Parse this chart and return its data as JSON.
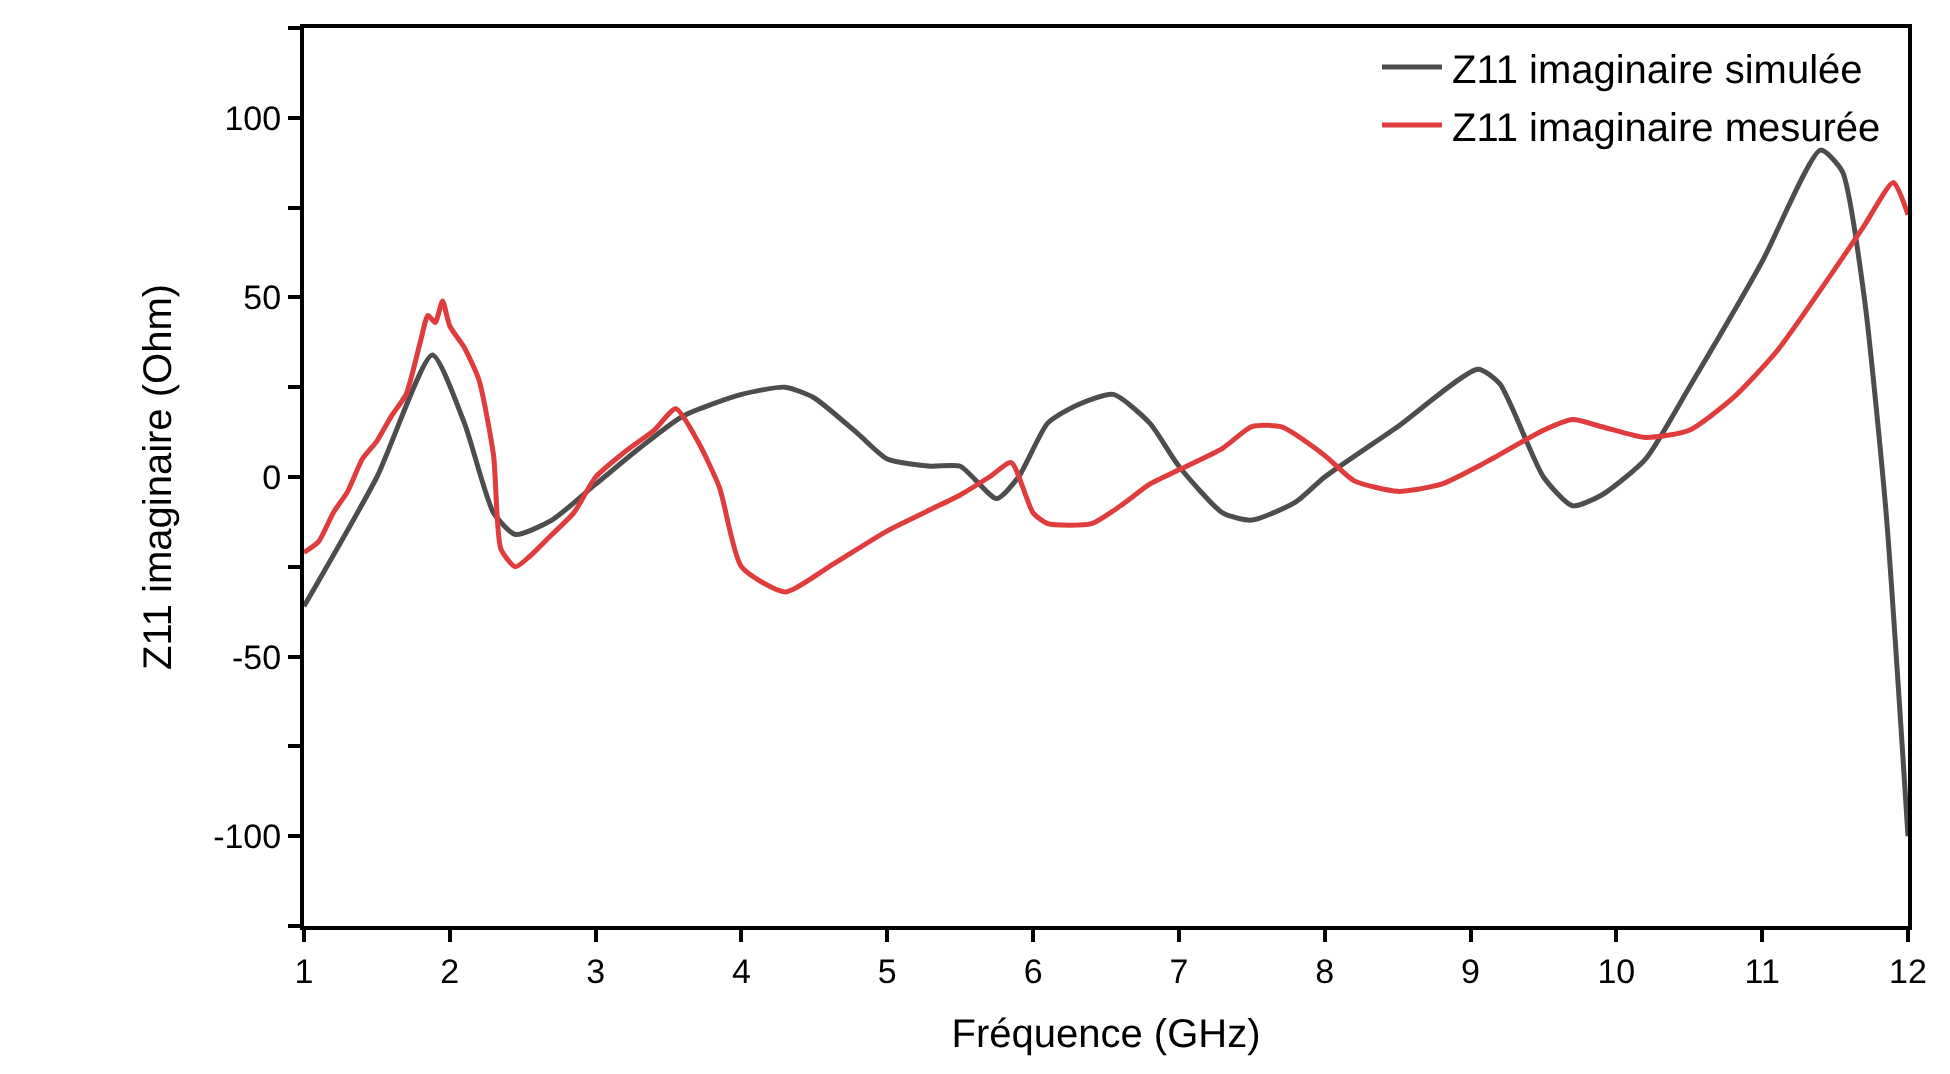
{
  "chart_data": {
    "type": "line",
    "xlabel": "Fréquence (GHz)",
    "ylabel": "Z11 imaginaire (Ohm)",
    "xlim": [
      1,
      12
    ],
    "xticks": [
      1,
      2,
      3,
      4,
      5,
      6,
      7,
      8,
      9,
      10,
      11,
      12
    ],
    "ylim": [
      -125,
      125
    ],
    "yticks": [
      {
        "value": -125,
        "label": null
      },
      -100,
      {
        "value": -75,
        "label": null
      },
      -50,
      {
        "value": -25,
        "label": null
      },
      0,
      {
        "value": 25,
        "label": null
      },
      50,
      {
        "value": 75,
        "label": null
      },
      100,
      {
        "value": 125,
        "label": null
      }
    ],
    "grid": false,
    "legend": "top right",
    "marker": "none",
    "line_style": "solid",
    "series": [
      {
        "name": "Z11 imaginaire simulée",
        "color": "#4d4d4d",
        "x": [
          1,
          1.5,
          1.88,
          2.1,
          2.3,
          2.45,
          2.7,
          3,
          3.3,
          3.6,
          4,
          4.3,
          4.5,
          4.8,
          5,
          5.3,
          5.5,
          5.75,
          5.9,
          6.1,
          6.3,
          6.55,
          6.8,
          7,
          7.3,
          7.5,
          7.8,
          8,
          8.5,
          9.05,
          9.2,
          9.5,
          9.7,
          9.9,
          10.2,
          10.5,
          11,
          11.4,
          11.55,
          11.7,
          11.85,
          12
        ],
        "values": [
          -36,
          0,
          34,
          15,
          -10,
          -16,
          -12,
          -2,
          8,
          17,
          23,
          25,
          22,
          12,
          5,
          3,
          3,
          -6,
          0,
          15,
          20,
          23,
          15,
          3,
          -10,
          -12,
          -7,
          0,
          14,
          30,
          26,
          0,
          -8,
          -5,
          5,
          25,
          60,
          91,
          85,
          50,
          -10,
          -100
        ]
      },
      {
        "name": "Z11 imaginaire mesurée",
        "color": "#e03c3c",
        "x": [
          1,
          1.1,
          1.2,
          1.3,
          1.4,
          1.5,
          1.6,
          1.7,
          1.8,
          1.85,
          1.9,
          1.95,
          2.0,
          2.1,
          2.2,
          2.3,
          2.35,
          2.45,
          2.55,
          2.7,
          2.85,
          3.0,
          3.2,
          3.4,
          3.55,
          3.7,
          3.85,
          4.0,
          4.3,
          4.6,
          5.0,
          5.3,
          5.5,
          5.7,
          5.85,
          6.0,
          6.1,
          6.4,
          6.6,
          6.8,
          7.0,
          7.3,
          7.5,
          7.7,
          8.0,
          8.2,
          8.5,
          8.8,
          9.1,
          9.5,
          9.7,
          9.9,
          10.2,
          10.5,
          10.8,
          11.1,
          11.5,
          11.7,
          11.9,
          12.0
        ],
        "values": [
          -21,
          -18,
          -10,
          -4,
          5,
          10,
          17,
          23,
          38,
          45,
          43,
          49,
          42,
          36,
          27,
          6,
          -20,
          -25,
          -22,
          -16,
          -10,
          0,
          7,
          13,
          19,
          10,
          -3,
          -25,
          -32,
          -25,
          -15,
          -9,
          -5,
          0,
          4,
          -10,
          -13,
          -13,
          -8,
          -2,
          2,
          8,
          14,
          14,
          6,
          -1,
          -4,
          -2,
          4,
          13,
          16,
          14,
          11,
          13,
          22,
          35,
          58,
          70,
          82,
          73
        ]
      }
    ]
  }
}
